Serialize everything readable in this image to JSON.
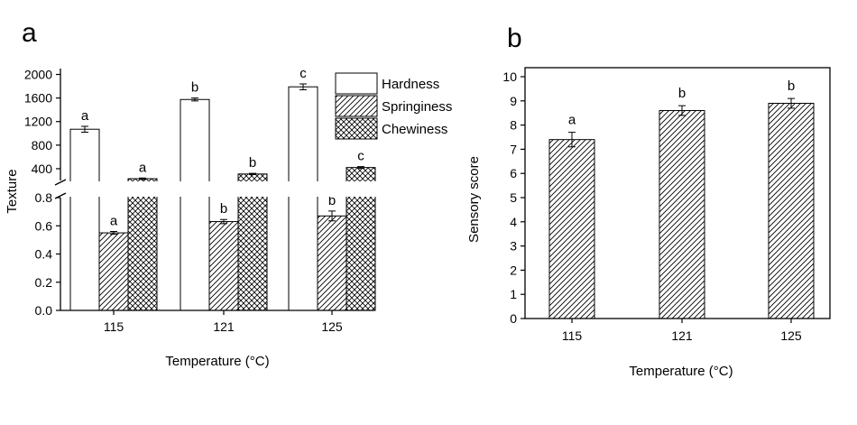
{
  "chart_data": [
    {
      "panel": "a",
      "type": "bar",
      "xlabel": "Temperature (°C)",
      "ylabel": "Texture",
      "categories": [
        "115",
        "121",
        "125"
      ],
      "legend_position": "top-right",
      "broken_axis": true,
      "y_lower_range": [
        0.0,
        0.8
      ],
      "y_lower_ticks": [
        "0.0",
        "0.2",
        "0.4",
        "0.6",
        "0.8"
      ],
      "y_upper_range": [
        200,
        2100
      ],
      "y_upper_ticks": [
        "400",
        "800",
        "1200",
        "1600",
        "2000"
      ],
      "series": [
        {
          "name": "Hardness",
          "axis": "upper",
          "pattern": "none",
          "values": [
            1070,
            1575,
            1790
          ],
          "errors": [
            50,
            25,
            50
          ],
          "letters": [
            "a",
            "b",
            "c"
          ]
        },
        {
          "name": "Springiness",
          "axis": "lower",
          "pattern": "diagonal",
          "values": [
            0.55,
            0.63,
            0.67
          ],
          "errors": [
            0.01,
            0.015,
            0.035
          ],
          "letters": [
            "a",
            "b",
            "b"
          ]
        },
        {
          "name": "Chewiness",
          "axis": "upper",
          "pattern": "crosshatch",
          "values": [
            230,
            310,
            420
          ],
          "errors": [
            12,
            10,
            15
          ],
          "letters": [
            "a",
            "b",
            "c"
          ]
        }
      ]
    },
    {
      "panel": "b",
      "type": "bar",
      "xlabel": "Temperature (°C)",
      "ylabel": "Sensory score",
      "categories": [
        "115",
        "121",
        "125"
      ],
      "ylim": [
        0,
        10
      ],
      "y_ticks": [
        "0",
        "1",
        "2",
        "3",
        "4",
        "5",
        "6",
        "7",
        "8",
        "9",
        "10"
      ],
      "series": [
        {
          "pattern": "diagonal",
          "values": [
            7.4,
            8.6,
            8.9
          ],
          "errors": [
            0.3,
            0.2,
            0.2
          ],
          "letters": [
            "a",
            "b",
            "b"
          ]
        }
      ]
    }
  ]
}
